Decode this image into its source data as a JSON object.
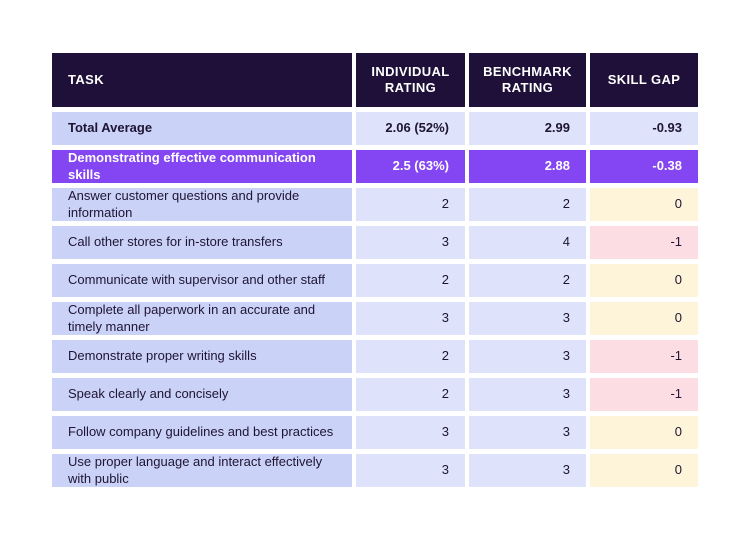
{
  "theme": {
    "page_bg": "#ffffff",
    "header_bg": "#1e1038",
    "header_text": "#ffffff",
    "task_cell_bg": "#cbd2f7",
    "value_cell_bg": "#dee3fb",
    "category_row_bg": "#8445f2",
    "category_row_text": "#ffffff",
    "gap_zero_bg": "#fdf4da",
    "gap_negative_bg": "#fcdde3",
    "body_text": "#1e1433"
  },
  "table": {
    "columns": [
      {
        "label": "TASK"
      },
      {
        "label": "INDIVIDUAL RATING"
      },
      {
        "label": "BENCHMARK RATING"
      },
      {
        "label": "SKILL GAP"
      }
    ],
    "rows": [
      {
        "type": "total",
        "task": "Total Average",
        "individual": "2.06 (52%)",
        "benchmark": "2.99",
        "gap": "-0.93",
        "gap_style": "neutral"
      },
      {
        "type": "category",
        "task": "Demonstrating effective communication skills",
        "individual": "2.5 (63%)",
        "benchmark": "2.88",
        "gap": "-0.38",
        "gap_style": "category"
      },
      {
        "type": "task",
        "task": "Answer customer questions and provide information",
        "individual": "2",
        "benchmark": "2",
        "gap": "0",
        "gap_style": "zero"
      },
      {
        "type": "task",
        "task": "Call other stores for in-store transfers",
        "individual": "3",
        "benchmark": "4",
        "gap": "-1",
        "gap_style": "negative"
      },
      {
        "type": "task",
        "task": "Communicate with supervisor and other staff",
        "individual": "2",
        "benchmark": "2",
        "gap": "0",
        "gap_style": "zero"
      },
      {
        "type": "task",
        "task": "Complete all paperwork in an accurate and timely manner",
        "individual": "3",
        "benchmark": "3",
        "gap": "0",
        "gap_style": "zero"
      },
      {
        "type": "task",
        "task": "Demonstrate proper writing skills",
        "individual": "2",
        "benchmark": "3",
        "gap": "-1",
        "gap_style": "negative"
      },
      {
        "type": "task",
        "task": "Speak clearly and concisely",
        "individual": "2",
        "benchmark": "3",
        "gap": "-1",
        "gap_style": "negative"
      },
      {
        "type": "task",
        "task": "Follow company guidelines and best practices",
        "individual": "3",
        "benchmark": "3",
        "gap": "0",
        "gap_style": "zero"
      },
      {
        "type": "task",
        "task": "Use proper language and interact effectively with public",
        "individual": "3",
        "benchmark": "3",
        "gap": "0",
        "gap_style": "zero"
      }
    ]
  }
}
